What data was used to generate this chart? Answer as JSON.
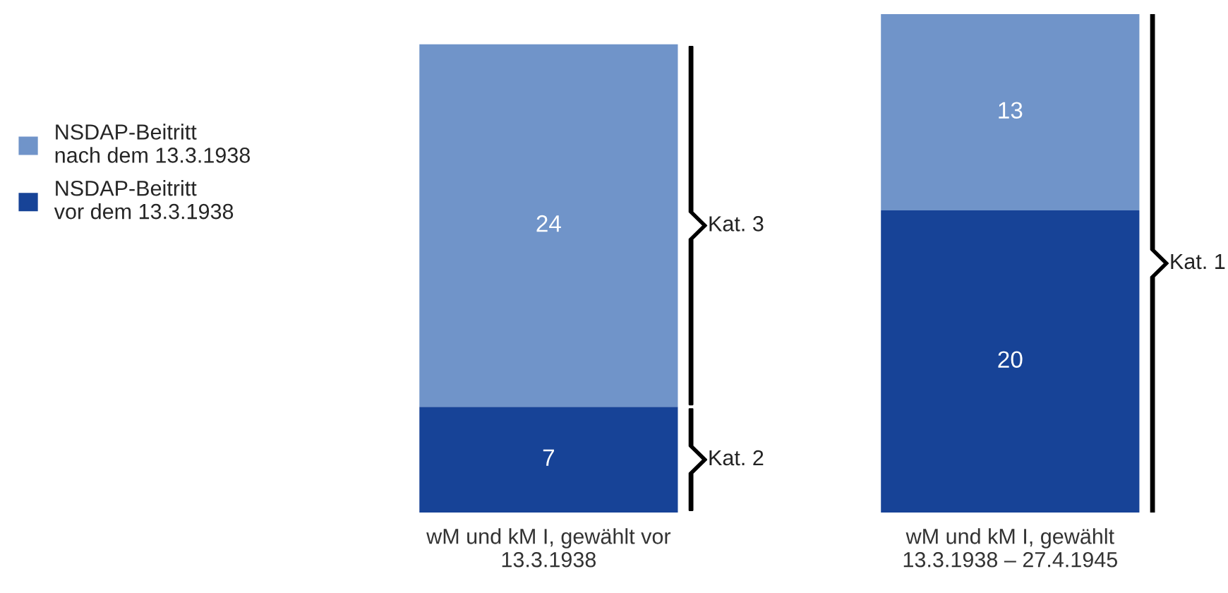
{
  "chart_data": {
    "type": "bar",
    "stacked": true,
    "data_labels": true,
    "legend": "left",
    "categories": [
      "wM und kM I, gewählt vor\n13.3.1938",
      "wM und kM I, gewählt\n13.3.1938 – 27.4.1945"
    ],
    "series": [
      {
        "name": "NSDAP-Beitritt\nvor dem 13.3.1938",
        "color": "#174397",
        "values": [
          7,
          20
        ]
      },
      {
        "name": "NSDAP-Beitritt\nnach dem 13.3.1938",
        "color": "#7094c9",
        "values": [
          24,
          13
        ]
      }
    ],
    "annotations": [
      "Kat. 3",
      "Kat. 2",
      "Kat. 1"
    ]
  }
}
